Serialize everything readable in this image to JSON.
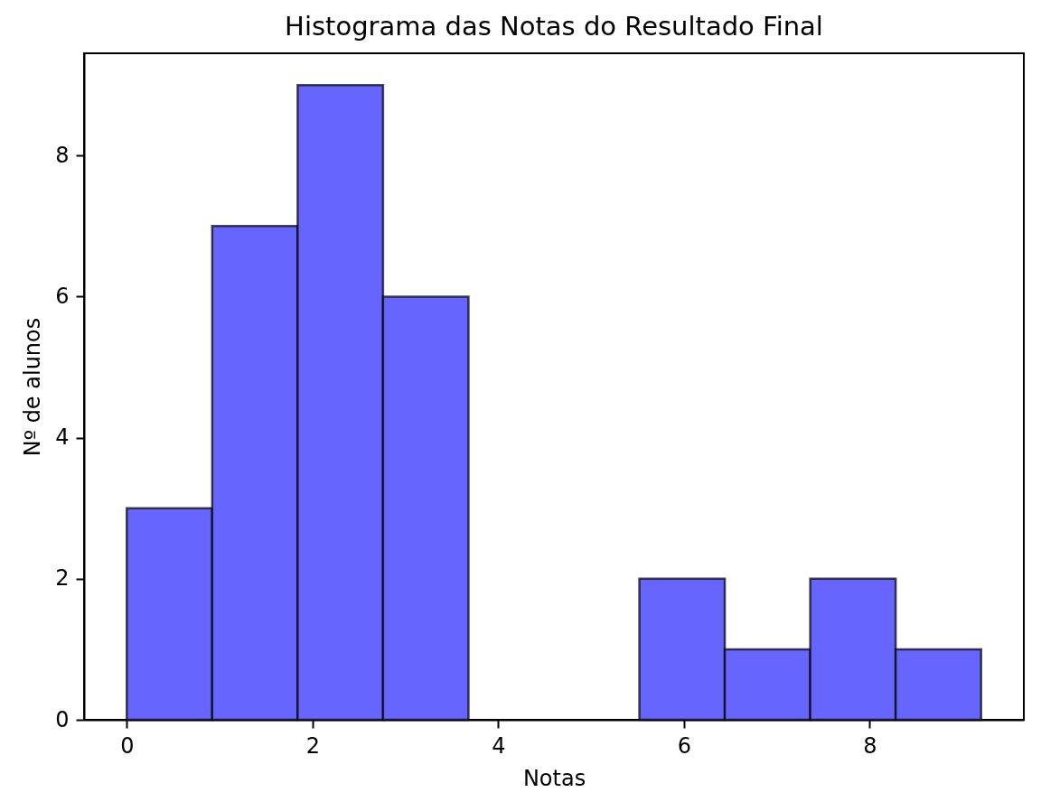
{
  "chart_data": {
    "type": "histogram",
    "title": "Histograma das Notas do Resultado Final",
    "xlabel": "Notas",
    "ylabel": "Nº de alunos",
    "bins": [
      0,
      0.92,
      1.84,
      2.76,
      3.68,
      4.6,
      5.52,
      6.44,
      7.36,
      8.28,
      9.2
    ],
    "values": [
      3,
      7,
      9,
      6,
      0,
      0,
      2,
      1,
      2,
      1
    ],
    "color": "#6666ff",
    "xlim": [
      -0.46,
      9.66
    ],
    "ylim": [
      0,
      9.45
    ],
    "xticks": [
      0,
      2,
      4,
      6,
      8
    ],
    "yticks": [
      0,
      2,
      4,
      6,
      8
    ]
  }
}
